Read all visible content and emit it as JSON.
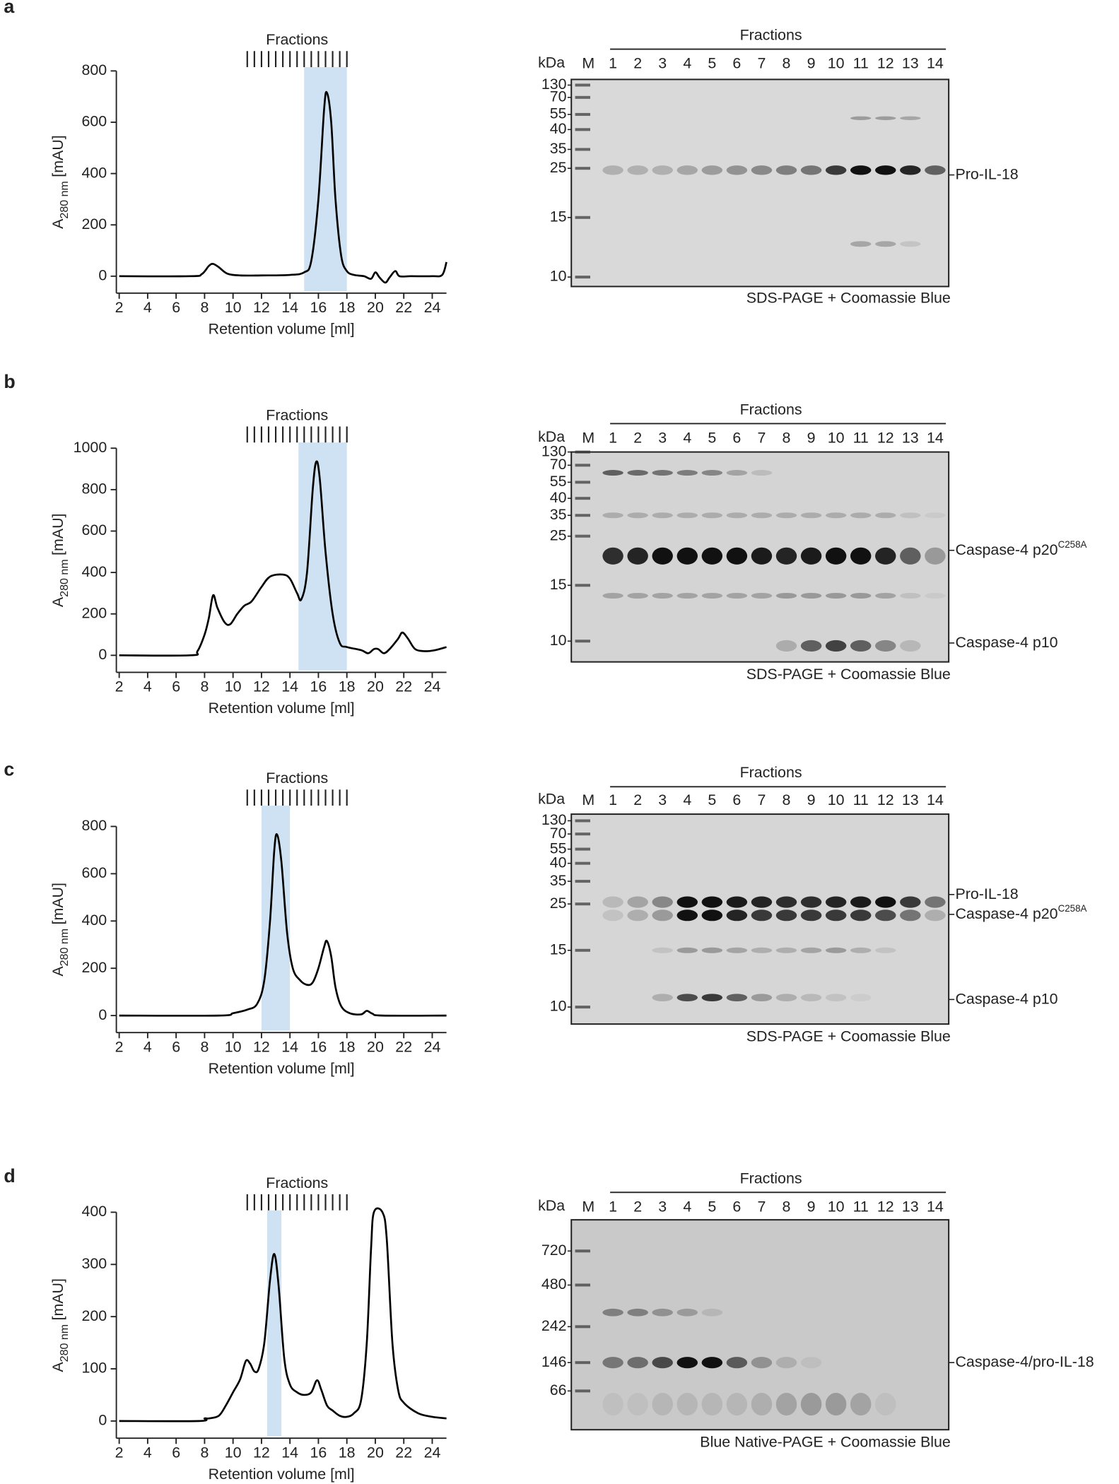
{
  "panel_labels": [
    "a",
    "b",
    "c",
    "d"
  ],
  "chart_data": [
    {
      "type": "line",
      "x_label": "Retention volume [ml]",
      "y_label": {
        "main": "A",
        "sub": "280 nm",
        "unit": "[mAU]"
      },
      "xlim": [
        1.8,
        25
      ],
      "xticks": [
        2,
        4,
        6,
        8,
        10,
        12,
        14,
        16,
        18,
        20,
        22,
        24
      ],
      "ylim": [
        -66,
        800
      ],
      "yticks": [
        0,
        200,
        400,
        600,
        800
      ],
      "highlight": {
        "range": [
          15,
          18
        ],
        "color": "#cfe2f3"
      },
      "fractions": {
        "label": "Fractions",
        "bounds": [
          11,
          11.5,
          12,
          12.5,
          13,
          13.5,
          14,
          14.5,
          15,
          15.5,
          16,
          16.5,
          17,
          17.5,
          18
        ]
      },
      "series": [
        {
          "color": "#000000",
          "x": [
            2,
            7,
            7.8,
            8.3,
            8.6,
            9,
            9.6,
            10.5,
            12,
            14,
            15,
            15.5,
            16,
            16.4,
            16.6,
            16.9,
            17.2,
            17.6,
            18,
            18.5,
            19.2,
            19.7,
            20,
            20.3,
            20.7,
            21,
            21.4,
            21.7,
            22.5,
            24,
            24.7,
            25
          ],
          "values": [
            0,
            0,
            8,
            40,
            48,
            35,
            10,
            3,
            3,
            5,
            15,
            60,
            300,
            650,
            715,
            600,
            300,
            80,
            20,
            5,
            0,
            -10,
            15,
            -5,
            -25,
            -5,
            20,
            0,
            0,
            0,
            5,
            55
          ]
        }
      ]
    },
    {
      "type": "line",
      "x_label": "Retention volume [ml]",
      "y_label": {
        "main": "A",
        "sub": "280 nm",
        "unit": "[mAU]"
      },
      "xlim": [
        1.8,
        25
      ],
      "xticks": [
        2,
        4,
        6,
        8,
        10,
        12,
        14,
        16,
        18,
        20,
        22,
        24
      ],
      "ylim": [
        -82,
        1000
      ],
      "yticks": [
        0,
        200,
        400,
        600,
        800,
        1000
      ],
      "highlight": {
        "range": [
          14.6,
          18
        ],
        "color": "#cfe2f3"
      },
      "fractions": {
        "label": "Fractions",
        "bounds": [
          11,
          11.5,
          12,
          12.5,
          13,
          13.5,
          14,
          14.5,
          15,
          15.5,
          16,
          16.5,
          17,
          17.5,
          18
        ]
      },
      "series": [
        {
          "color": "#000000",
          "x": [
            2,
            7,
            7.5,
            8,
            8.3,
            8.6,
            8.9,
            9.4,
            9.8,
            10.3,
            10.8,
            11.3,
            12,
            12.6,
            13.5,
            14,
            14.5,
            14.8,
            15.2,
            15.6,
            15.85,
            16.1,
            16.5,
            17,
            17.5,
            18,
            19,
            19.5,
            19.9,
            20.2,
            20.6,
            21,
            21.6,
            21.9,
            22.3,
            22.8,
            23.5,
            24.2,
            25
          ],
          "values": [
            0,
            0,
            20,
            100,
            180,
            290,
            230,
            160,
            150,
            200,
            240,
            260,
            330,
            380,
            390,
            370,
            300,
            270,
            400,
            800,
            935,
            850,
            500,
            200,
            60,
            40,
            25,
            10,
            30,
            30,
            10,
            30,
            80,
            110,
            80,
            30,
            20,
            25,
            40
          ]
        }
      ]
    },
    {
      "type": "line",
      "x_label": "Retention volume [ml]",
      "y_label": {
        "main": "A",
        "sub": "280 nm",
        "unit": "[mAU]"
      },
      "xlim": [
        1.8,
        25
      ],
      "xticks": [
        2,
        4,
        6,
        8,
        10,
        12,
        14,
        16,
        18,
        20,
        22,
        24
      ],
      "ylim": [
        -72,
        800
      ],
      "yticks": [
        0,
        200,
        400,
        600,
        800
      ],
      "highlight": {
        "range": [
          12,
          14
        ],
        "color": "#cfe2f3"
      },
      "fractions": {
        "label": "Fractions",
        "bounds": [
          11,
          11.5,
          12,
          12.5,
          13,
          13.5,
          14,
          14.5,
          15,
          15.5,
          16,
          16.5,
          17,
          17.5,
          18
        ]
      },
      "series": [
        {
          "color": "#000000",
          "x": [
            2,
            9,
            10,
            11,
            11.7,
            12.2,
            12.6,
            12.9,
            13.1,
            13.4,
            13.8,
            14.2,
            14.7,
            15.2,
            15.6,
            16,
            16.4,
            16.6,
            16.9,
            17.2,
            17.6,
            18.2,
            19,
            19.4,
            19.8,
            20.5,
            25
          ],
          "values": [
            0,
            0,
            10,
            25,
            50,
            150,
            400,
            700,
            765,
            650,
            350,
            200,
            150,
            130,
            140,
            200,
            290,
            315,
            250,
            120,
            40,
            10,
            5,
            20,
            8,
            0,
            0
          ]
        }
      ]
    },
    {
      "type": "line",
      "x_label": "Retention volume [ml]",
      "y_label": {
        "main": "A",
        "sub": "280 nm",
        "unit": "[mAU]"
      },
      "xlim": [
        1.8,
        25
      ],
      "xticks": [
        2,
        4,
        6,
        8,
        10,
        12,
        14,
        16,
        18,
        20,
        22,
        24
      ],
      "ylim": [
        -33,
        400
      ],
      "yticks": [
        0,
        100,
        200,
        300,
        400
      ],
      "highlight": {
        "range": [
          12.4,
          13.4
        ],
        "color": "#cfe2f3"
      },
      "fractions": {
        "label": "Fractions",
        "bounds": [
          11,
          11.5,
          12,
          12.5,
          13,
          13.5,
          14,
          14.5,
          15,
          15.5,
          16,
          16.5,
          17,
          17.5,
          18
        ]
      },
      "series": [
        {
          "color": "#000000",
          "x": [
            2,
            7.6,
            8,
            8.3,
            9,
            9.5,
            10,
            10.5,
            10.9,
            11.2,
            11.5,
            11.8,
            12.2,
            12.6,
            12.9,
            13.2,
            13.6,
            14,
            14.5,
            15,
            15.5,
            15.9,
            16.2,
            16.6,
            17,
            17.5,
            18,
            18.5,
            19,
            19.4,
            19.7,
            19.9,
            20.5,
            20.8,
            21.2,
            21.6,
            22,
            23,
            24,
            25
          ],
          "values": [
            0,
            0,
            5,
            5,
            10,
            30,
            55,
            80,
            115,
            110,
            95,
            100,
            150,
            270,
            320,
            260,
            120,
            70,
            55,
            50,
            55,
            78,
            60,
            30,
            20,
            10,
            8,
            15,
            40,
            150,
            330,
            400,
            400,
            350,
            150,
            60,
            35,
            15,
            8,
            5
          ]
        }
      ]
    }
  ],
  "gels": [
    {
      "unit": "kDa",
      "marker_lane": "M",
      "fractions_label": "Fractions",
      "lanes": [
        1,
        2,
        3,
        4,
        5,
        6,
        7,
        8,
        9,
        10,
        11,
        12,
        13,
        14
      ],
      "markers": [
        130,
        70,
        55,
        40,
        35,
        25,
        15,
        10
      ],
      "bands": [
        {
          "label": "Pro-IL-18"
        }
      ],
      "caption": "SDS-PAGE + Coomassie Blue"
    },
    {
      "unit": "kDa",
      "marker_lane": "M",
      "fractions_label": "Fractions",
      "lanes": [
        1,
        2,
        3,
        4,
        5,
        6,
        7,
        8,
        9,
        10,
        11,
        12,
        13,
        14
      ],
      "markers": [
        130,
        70,
        55,
        40,
        35,
        25,
        15,
        10
      ],
      "bands": [
        {
          "label": "Caspase-4 p20",
          "sup": "C258A"
        },
        {
          "label": "Caspase-4 p10"
        }
      ],
      "caption": "SDS-PAGE + Coomassie Blue"
    },
    {
      "unit": "kDa",
      "marker_lane": "M",
      "fractions_label": "Fractions",
      "lanes": [
        1,
        2,
        3,
        4,
        5,
        6,
        7,
        8,
        9,
        10,
        11,
        12,
        13,
        14
      ],
      "markers": [
        130,
        70,
        55,
        40,
        35,
        25,
        15,
        10
      ],
      "bands": [
        {
          "label": "Pro-IL-18"
        },
        {
          "label": "Caspase-4 p20",
          "sup": "C258A"
        },
        {
          "label": "Caspase-4 p10"
        }
      ],
      "caption": "SDS-PAGE + Coomassie Blue"
    },
    {
      "unit": "kDa",
      "marker_lane": "M",
      "fractions_label": "Fractions",
      "lanes": [
        1,
        2,
        3,
        4,
        5,
        6,
        7,
        8,
        9,
        10,
        11,
        12,
        13,
        14
      ],
      "markers": [
        720,
        480,
        242,
        146,
        66
      ],
      "bands": [
        {
          "label": "Caspase-4/pro-IL-18"
        }
      ],
      "caption": "Blue Native-PAGE + Coomassie Blue"
    }
  ]
}
